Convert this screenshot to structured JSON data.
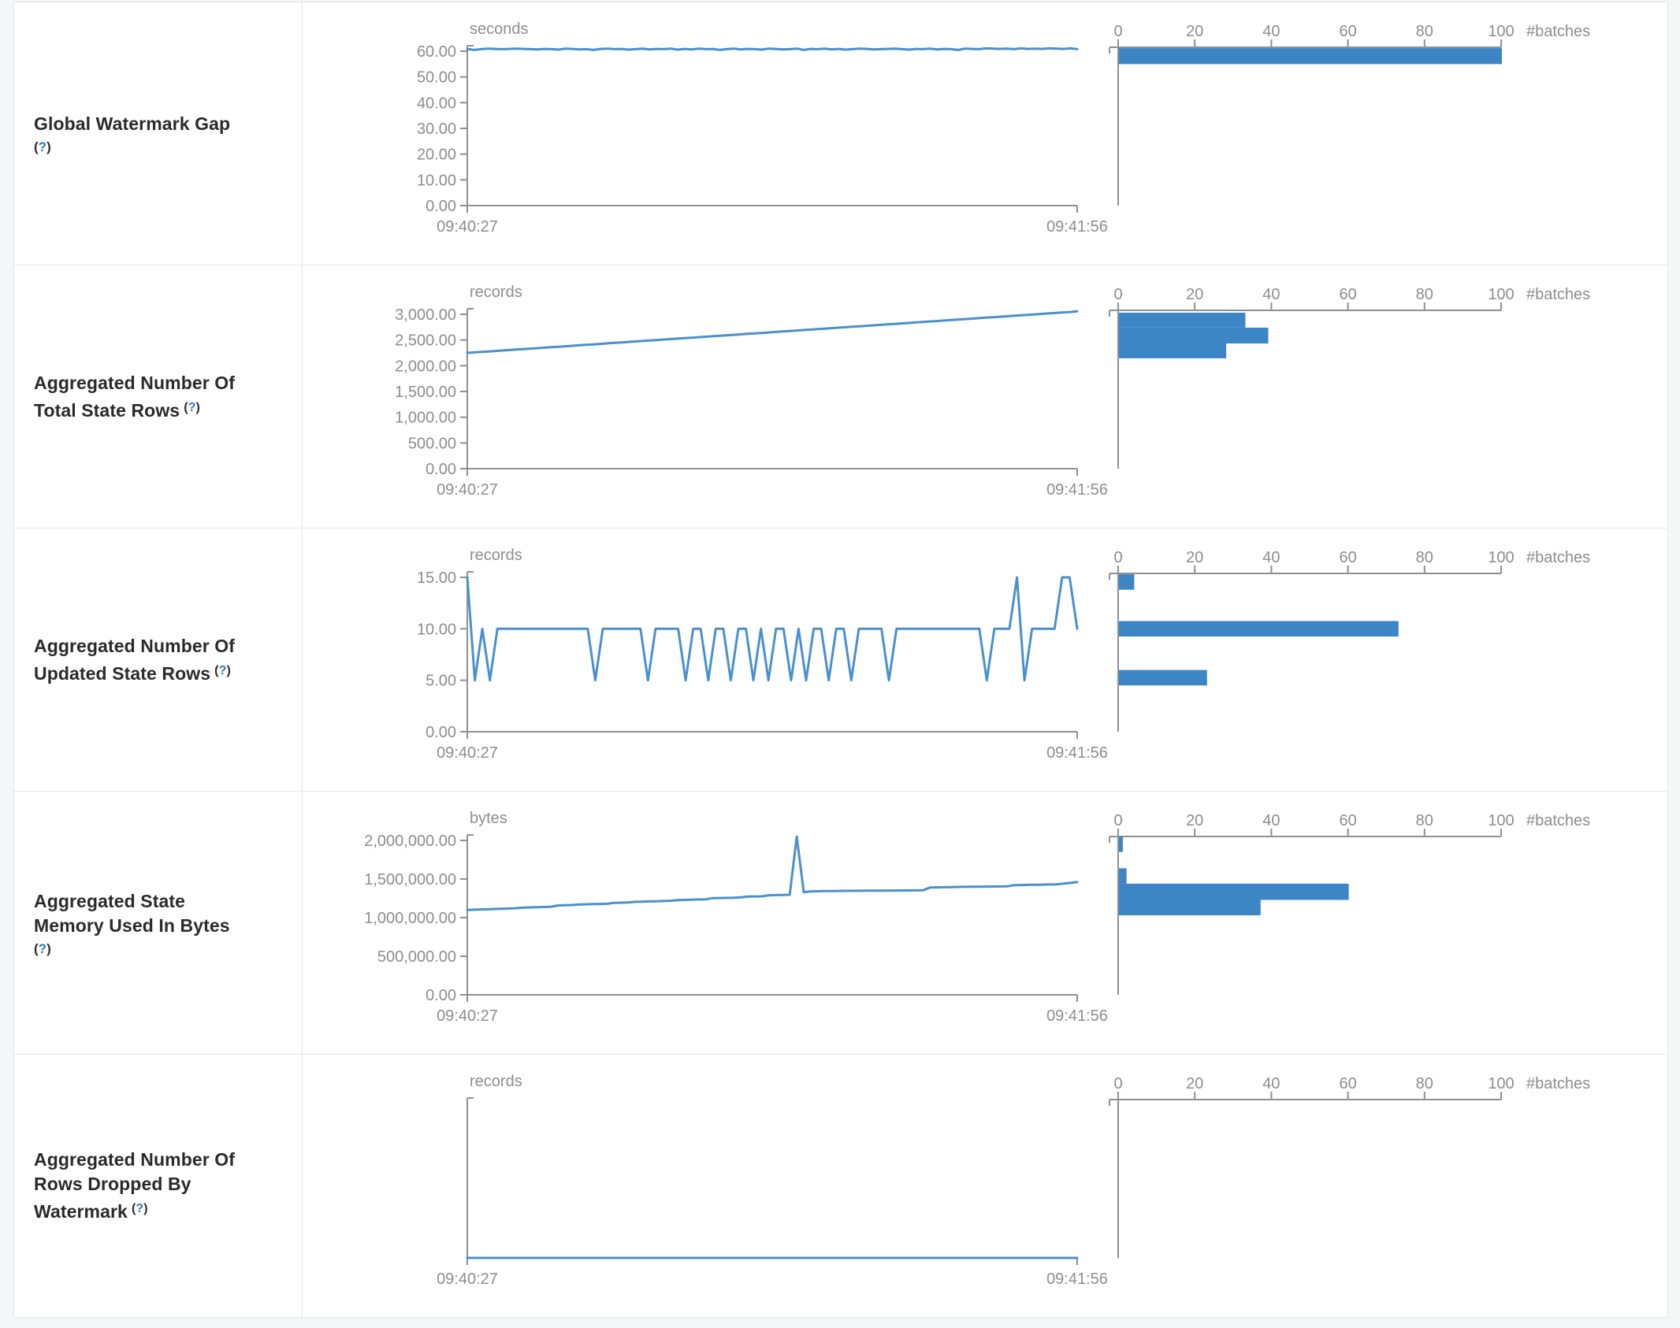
{
  "colors": {
    "line": "#4a90ce",
    "bar": "#3d86c6",
    "axis": "#909090",
    "axis_text": "#8d8d8d",
    "label_text": "#2a2a2a",
    "help_link": "#3076bb",
    "table_border": "#e3e6e9",
    "page_background": "#f5f6f7"
  },
  "histogram_axis": {
    "tick_labels": [
      "0",
      "20",
      "40",
      "60",
      "80",
      "100"
    ],
    "tick_values": [
      0,
      20,
      40,
      60,
      80,
      100
    ],
    "unit_label": "#batches",
    "max": 100
  },
  "time_axis": {
    "start": "09:40:27",
    "end": "09:41:56"
  },
  "chart_data": [
    {
      "metric": "Global Watermark Gap",
      "label_lines": [
        "Global Watermark Gap"
      ],
      "help_text": "(?)",
      "help_inline": false,
      "timeline": {
        "type": "line",
        "unit": "seconds",
        "x_start": "09:40:27",
        "x_end": "09:41:56",
        "y_max": 60,
        "y_tick_values": [
          60,
          50,
          40,
          30,
          20,
          10,
          0
        ],
        "y_tick_labels": [
          "60.00",
          "50.00",
          "40.00",
          "30.00",
          "20.00",
          "10.00",
          "0.00"
        ],
        "values": [
          60.9,
          60.5,
          60.8,
          61.0,
          60.9,
          60.8,
          60.9,
          61.0,
          60.9,
          60.8,
          60.7,
          60.9,
          60.8,
          60.6,
          61.0,
          60.9,
          60.7,
          60.8,
          60.5,
          60.9,
          61.0,
          60.8,
          60.9,
          60.6,
          60.8,
          61.0,
          60.7,
          60.9,
          60.8,
          61.0,
          60.6,
          60.9,
          60.7,
          61.0,
          60.8,
          60.9,
          60.5,
          60.8,
          61.0,
          60.7,
          60.9,
          60.8,
          60.6,
          61.0,
          60.9,
          60.7,
          60.8,
          61.0,
          60.5,
          60.9,
          60.8,
          61.0,
          60.7,
          60.9,
          60.6,
          60.8,
          61.0,
          60.9,
          60.7,
          60.8,
          60.9,
          61.0,
          60.8,
          60.6,
          60.9,
          60.8,
          61.0,
          60.7,
          60.9,
          60.8,
          60.5,
          61.0,
          60.9,
          60.8,
          61.1,
          61.0,
          60.9,
          61.0,
          60.8,
          61.1,
          60.9,
          61.0,
          60.9,
          61.1,
          61.0,
          60.9,
          61.1,
          60.8
        ]
      },
      "histogram": {
        "type": "bar",
        "x_label": "#batches",
        "bins": [
          {
            "range": [
              55.0,
              61.2
            ],
            "count": 100
          }
        ]
      }
    },
    {
      "metric": "Aggregated Number Of Total State Rows",
      "label_lines": [
        "Aggregated Number Of",
        "Total State Rows"
      ],
      "help_text": "(?)",
      "help_inline": true,
      "timeline": {
        "type": "line",
        "unit": "records",
        "x_start": "09:40:27",
        "x_end": "09:41:56",
        "y_max": 3000,
        "y_tick_values": [
          3000,
          2500,
          2000,
          1500,
          1000,
          500,
          0
        ],
        "y_tick_labels": [
          "3,000.00",
          "2,500.00",
          "2,000.00",
          "1,500.00",
          "1,000.00",
          "500.00",
          "0.00"
        ],
        "values": [
          2250,
          2259,
          2268,
          2277,
          2287,
          2296,
          2305,
          2314,
          2324,
          2333,
          2342,
          2351,
          2361,
          2370,
          2379,
          2388,
          2398,
          2407,
          2416,
          2425,
          2435,
          2444,
          2453,
          2462,
          2472,
          2481,
          2490,
          2499,
          2509,
          2518,
          2527,
          2536,
          2546,
          2555,
          2564,
          2573,
          2583,
          2592,
          2601,
          2610,
          2620,
          2629,
          2638,
          2647,
          2657,
          2666,
          2675,
          2684,
          2694,
          2703,
          2712,
          2721,
          2731,
          2740,
          2749,
          2758,
          2768,
          2777,
          2786,
          2795,
          2805,
          2814,
          2823,
          2832,
          2842,
          2851,
          2860,
          2869,
          2879,
          2888,
          2897,
          2906,
          2916,
          2925,
          2934,
          2943,
          2953,
          2962,
          2971,
          2980,
          2990,
          2999,
          3008,
          3017,
          3027,
          3036,
          3045,
          3060
        ]
      },
      "histogram": {
        "type": "bar",
        "x_label": "#batches",
        "bins": [
          {
            "range": [
              2740,
              3030
            ],
            "count": 33
          },
          {
            "range": [
              2433,
              2740
            ],
            "count": 39
          },
          {
            "range": [
              2143,
              2433
            ],
            "count": 28
          }
        ]
      }
    },
    {
      "metric": "Aggregated Number Of Updated State Rows",
      "label_lines": [
        "Aggregated Number Of",
        "Updated State Rows"
      ],
      "help_text": "(?)",
      "help_inline": true,
      "timeline": {
        "type": "line",
        "unit": "records",
        "x_start": "09:40:27",
        "x_end": "09:41:56",
        "y_max": 15,
        "y_tick_values": [
          15,
          10,
          5,
          0
        ],
        "y_tick_labels": [
          "15.00",
          "10.00",
          "5.00",
          "0.00"
        ],
        "values": [
          15,
          5,
          10,
          5,
          10,
          10,
          10,
          10,
          10,
          10,
          10,
          10,
          10,
          10,
          10,
          10,
          10,
          5,
          10,
          10,
          10,
          10,
          10,
          10,
          5,
          10,
          10,
          10,
          10,
          5,
          10,
          10,
          5,
          10,
          10,
          5,
          10,
          10,
          5,
          10,
          5,
          10,
          10,
          5,
          10,
          5,
          10,
          10,
          5,
          10,
          10,
          5,
          10,
          10,
          10,
          10,
          5,
          10,
          10,
          10,
          10,
          10,
          10,
          10,
          10,
          10,
          10,
          10,
          10,
          5,
          10,
          10,
          10,
          15,
          5,
          10,
          10,
          10,
          10,
          15,
          15,
          10
        ]
      },
      "histogram": {
        "type": "bar",
        "x_label": "#batches",
        "bins": [
          {
            "range": [
              13.8,
              15.3
            ],
            "count": 4
          },
          {
            "range": [
              9.25,
              10.75
            ],
            "count": 73
          },
          {
            "range": [
              4.5,
              6.0
            ],
            "count": 23
          }
        ]
      }
    },
    {
      "metric": "Aggregated State Memory Used In Bytes",
      "label_lines": [
        "Aggregated State",
        "Memory Used In Bytes"
      ],
      "help_text": "(?)",
      "help_inline": false,
      "timeline": {
        "type": "line",
        "unit": "bytes",
        "x_start": "09:40:27",
        "x_end": "09:41:56",
        "y_max": 2000000,
        "y_tick_values": [
          2000000,
          1500000,
          1000000,
          500000,
          0
        ],
        "y_tick_labels": [
          "2,000,000.00",
          "1,500,000.00",
          "1,000,000.00",
          "500,000.00",
          "0.00"
        ],
        "values": [
          1100000,
          1103000,
          1106000,
          1108000,
          1112000,
          1115000,
          1118000,
          1122000,
          1130000,
          1133000,
          1136000,
          1138000,
          1142000,
          1158000,
          1160000,
          1163000,
          1170000,
          1172000,
          1175000,
          1178000,
          1180000,
          1192000,
          1194000,
          1196000,
          1205000,
          1207000,
          1210000,
          1212000,
          1215000,
          1218000,
          1228000,
          1230000,
          1233000,
          1236000,
          1238000,
          1252000,
          1254000,
          1256000,
          1258000,
          1262000,
          1272000,
          1274000,
          1276000,
          1290000,
          1292000,
          1294000,
          1296000,
          2050000,
          1330000,
          1340000,
          1342000,
          1344000,
          1345000,
          1346000,
          1347000,
          1348000,
          1348000,
          1349000,
          1350000,
          1350000,
          1351000,
          1351000,
          1352000,
          1352000,
          1353000,
          1354000,
          1390000,
          1392000,
          1394000,
          1396000,
          1398000,
          1399000,
          1400000,
          1401000,
          1402000,
          1403000,
          1404000,
          1405000,
          1420000,
          1422000,
          1424000,
          1426000,
          1428000,
          1430000,
          1432000,
          1440000,
          1450000,
          1460000
        ]
      },
      "histogram": {
        "type": "bar",
        "x_label": "#batches",
        "bins": [
          {
            "range": [
              1850000,
              2050000
            ],
            "count": 1
          },
          {
            "range": [
              1440000,
              1640000
            ],
            "count": 2
          },
          {
            "range": [
              1230000,
              1440000
            ],
            "count": 60
          },
          {
            "range": [
              1030000,
              1230000
            ],
            "count": 37
          }
        ]
      }
    },
    {
      "metric": "Aggregated Number Of Rows Dropped By Watermark",
      "label_lines": [
        "Aggregated Number Of",
        "Rows Dropped By",
        "Watermark"
      ],
      "help_text": "(?)",
      "help_inline": true,
      "timeline": {
        "type": "line",
        "unit": "records",
        "x_start": "09:40:27",
        "x_end": "09:41:56",
        "y_max": 1,
        "y_tick_values": [],
        "y_tick_labels": [],
        "values": [
          0,
          0
        ]
      },
      "histogram": {
        "type": "bar",
        "x_label": "#batches",
        "bins": []
      }
    }
  ]
}
